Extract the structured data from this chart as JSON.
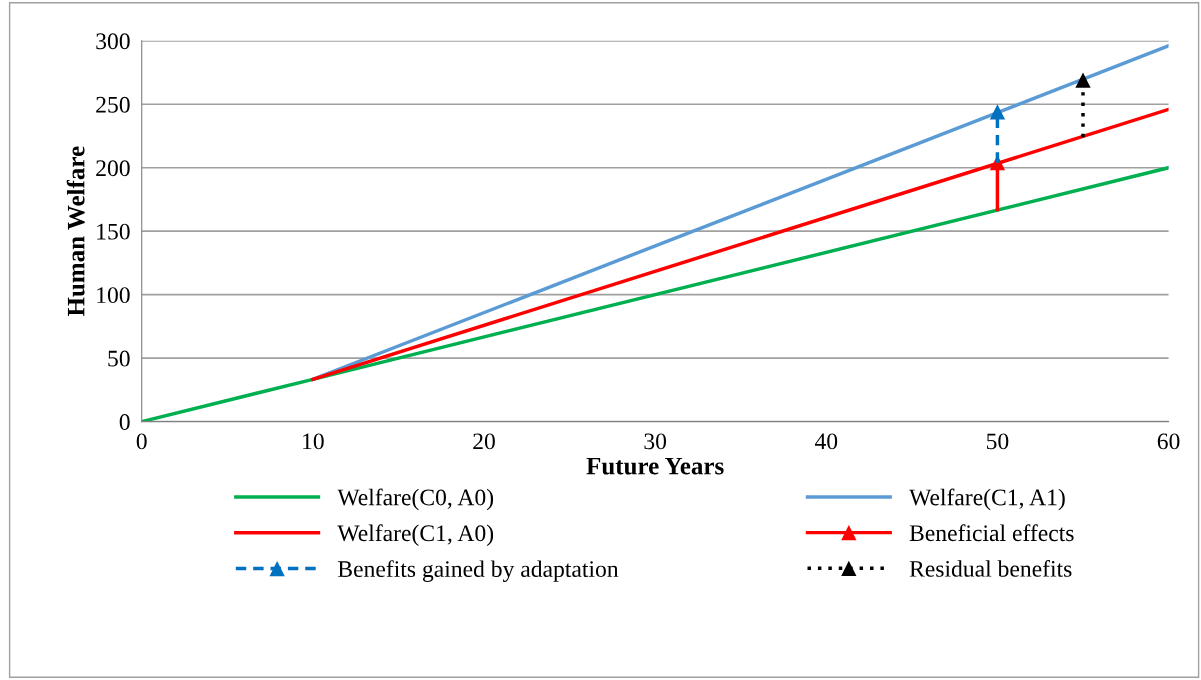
{
  "chart_data": {
    "type": "line",
    "xlabel": "Future Years",
    "ylabel": "Human Welfare",
    "xlim": [
      0,
      60
    ],
    "xticks": [
      0,
      10,
      20,
      30,
      40,
      50,
      60
    ],
    "ylim": [
      0,
      300
    ],
    "yticks": [
      0,
      50,
      100,
      150,
      200,
      250,
      300
    ],
    "grid": "y",
    "legend": "bottom",
    "marker": "none",
    "series": [
      {
        "name": "Welfare(C0, A0)",
        "color": "#00b050",
        "x": [
          0,
          10,
          60
        ],
        "values": [
          0,
          33.3,
          200
        ],
        "line_style": "solid"
      },
      {
        "name": "Welfare(C1, A1)",
        "color": "#5b9bd5",
        "x": [
          10,
          60
        ],
        "values": [
          33.3,
          296
        ],
        "line_style": "solid"
      },
      {
        "name": "Welfare(C1, A0)",
        "color": "#ff0000",
        "x": [
          10,
          60
        ],
        "values": [
          33.3,
          246
        ],
        "line_style": "solid"
      },
      {
        "name": "Beneficial effects",
        "color": "#ff0000",
        "x": [
          50,
          50
        ],
        "values": [
          167,
          204
        ],
        "line_style": "solid",
        "marker": "triangle"
      },
      {
        "name": "Benefits gained by adaptation",
        "color": "#0070c0",
        "x": [
          50,
          50
        ],
        "values": [
          204,
          244
        ],
        "line_style": "dashed",
        "marker": "triangle"
      },
      {
        "name": "Residual benefits",
        "color": "#000000",
        "x": [
          55,
          55
        ],
        "values": [
          224,
          269
        ],
        "line_style": "dotted",
        "marker": "triangle"
      }
    ]
  }
}
